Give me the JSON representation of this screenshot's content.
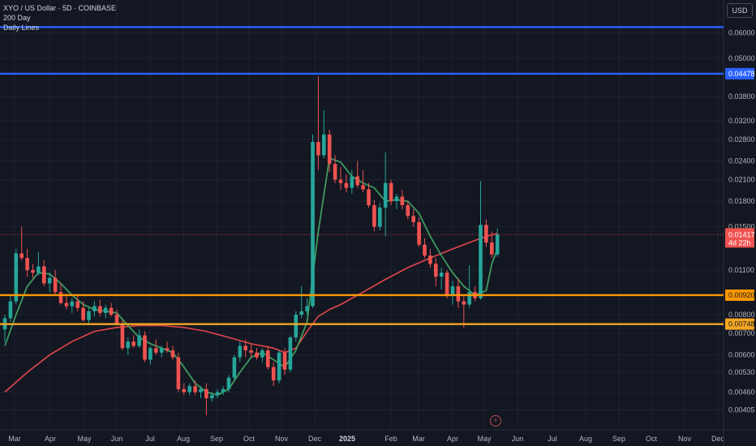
{
  "header": {
    "symbol_line": "XYO / US Dollar · 5D · COINBASE",
    "study_1": "200 Day",
    "study_2": "Daily Lines"
  },
  "currency_button": "USD",
  "flash_icon": "lightning-icon",
  "colors": {
    "background": "#131722",
    "up": "#26a69a",
    "down": "#ef5350",
    "ma_short": "#3e9a5e",
    "ma_long": "#e2474b",
    "level_blue": "#2962ff",
    "level_orange": "#ff9800",
    "level_gold": "#f5a623"
  },
  "chart_data": {
    "type": "candlestick",
    "y_scale": "log",
    "x_ticks": [
      "Mar",
      "Apr",
      "May",
      "Jun",
      "Jul",
      "Aug",
      "Sep",
      "Oct",
      "Nov",
      "Dec",
      "2025",
      "Feb",
      "Mar",
      "Apr",
      "May",
      "Jun",
      "Jul",
      "Aug",
      "Sep",
      "Oct",
      "Nov",
      "Dec"
    ],
    "y_ticks": [
      "0.06000",
      "0.05000",
      "0.03800",
      "0.03200",
      "0.02800",
      "0.02400",
      "0.02100",
      "0.01800",
      "0.01500",
      "0.01100",
      "0.00800",
      "0.00700",
      "0.00600",
      "0.00530",
      "0.00460",
      "0.00405"
    ],
    "ylim": [
      0.0039,
      0.066
    ],
    "horizontal_levels": [
      {
        "value": 0.0625,
        "color": "#2962ff",
        "label": ""
      },
      {
        "value": 0.04478,
        "color": "#2962ff",
        "label": "0.04478"
      },
      {
        "value": 0.0092,
        "color": "#ff9800",
        "label": "0.00920"
      },
      {
        "value": 0.00748,
        "color": "#f5a623",
        "label": "0.00748"
      }
    ],
    "last_price": {
      "value": 0.01417,
      "label": "0.01417",
      "countdown": "4d 22h"
    },
    "candles": [
      {
        "o": 0.0072,
        "h": 0.008,
        "l": 0.0066,
        "c": 0.0078
      },
      {
        "o": 0.0078,
        "h": 0.0092,
        "l": 0.0076,
        "c": 0.0088
      },
      {
        "o": 0.0088,
        "h": 0.0128,
        "l": 0.0086,
        "c": 0.0124
      },
      {
        "o": 0.0124,
        "h": 0.015,
        "l": 0.0118,
        "c": 0.012
      },
      {
        "o": 0.012,
        "h": 0.0128,
        "l": 0.0105,
        "c": 0.011
      },
      {
        "o": 0.011,
        "h": 0.0115,
        "l": 0.0104,
        "c": 0.0108
      },
      {
        "o": 0.0108,
        "h": 0.0125,
        "l": 0.0106,
        "c": 0.0113
      },
      {
        "o": 0.0113,
        "h": 0.0118,
        "l": 0.0098,
        "c": 0.01
      },
      {
        "o": 0.01,
        "h": 0.0108,
        "l": 0.0094,
        "c": 0.0104
      },
      {
        "o": 0.0104,
        "h": 0.011,
        "l": 0.0092,
        "c": 0.0094
      },
      {
        "o": 0.0094,
        "h": 0.01,
        "l": 0.0086,
        "c": 0.0087
      },
      {
        "o": 0.0087,
        "h": 0.0093,
        "l": 0.0083,
        "c": 0.0085
      },
      {
        "o": 0.0085,
        "h": 0.009,
        "l": 0.0081,
        "c": 0.0088
      },
      {
        "o": 0.0088,
        "h": 0.0092,
        "l": 0.0082,
        "c": 0.0084
      },
      {
        "o": 0.0084,
        "h": 0.0088,
        "l": 0.0076,
        "c": 0.0077
      },
      {
        "o": 0.0077,
        "h": 0.0084,
        "l": 0.0075,
        "c": 0.0082
      },
      {
        "o": 0.0082,
        "h": 0.0088,
        "l": 0.0079,
        "c": 0.0085
      },
      {
        "o": 0.0085,
        "h": 0.0089,
        "l": 0.0079,
        "c": 0.0081
      },
      {
        "o": 0.0081,
        "h": 0.0086,
        "l": 0.0078,
        "c": 0.0084
      },
      {
        "o": 0.0084,
        "h": 0.0087,
        "l": 0.0079,
        "c": 0.008
      },
      {
        "o": 0.008,
        "h": 0.0083,
        "l": 0.0074,
        "c": 0.0075
      },
      {
        "o": 0.0075,
        "h": 0.0077,
        "l": 0.0062,
        "c": 0.0063
      },
      {
        "o": 0.0063,
        "h": 0.0068,
        "l": 0.006,
        "c": 0.0066
      },
      {
        "o": 0.0066,
        "h": 0.0069,
        "l": 0.0063,
        "c": 0.0064
      },
      {
        "o": 0.0064,
        "h": 0.0072,
        "l": 0.0063,
        "c": 0.0069
      },
      {
        "o": 0.0069,
        "h": 0.0071,
        "l": 0.0057,
        "c": 0.0058
      },
      {
        "o": 0.0058,
        "h": 0.0064,
        "l": 0.0056,
        "c": 0.0063
      },
      {
        "o": 0.0063,
        "h": 0.0067,
        "l": 0.006,
        "c": 0.0061
      },
      {
        "o": 0.0061,
        "h": 0.0064,
        "l": 0.0059,
        "c": 0.0063
      },
      {
        "o": 0.0063,
        "h": 0.0066,
        "l": 0.0061,
        "c": 0.0062
      },
      {
        "o": 0.0062,
        "h": 0.0064,
        "l": 0.0058,
        "c": 0.0059
      },
      {
        "o": 0.0059,
        "h": 0.0061,
        "l": 0.0046,
        "c": 0.0047
      },
      {
        "o": 0.0047,
        "h": 0.0049,
        "l": 0.0045,
        "c": 0.0046
      },
      {
        "o": 0.0046,
        "h": 0.0049,
        "l": 0.0045,
        "c": 0.0048
      },
      {
        "o": 0.0048,
        "h": 0.005,
        "l": 0.0045,
        "c": 0.0046
      },
      {
        "o": 0.0046,
        "h": 0.0048,
        "l": 0.0044,
        "c": 0.0047
      },
      {
        "o": 0.0047,
        "h": 0.0049,
        "l": 0.0039,
        "c": 0.0044
      },
      {
        "o": 0.0044,
        "h": 0.0046,
        "l": 0.0043,
        "c": 0.0045
      },
      {
        "o": 0.0045,
        "h": 0.0047,
        "l": 0.0044,
        "c": 0.0046
      },
      {
        "o": 0.0046,
        "h": 0.0048,
        "l": 0.0045,
        "c": 0.0047
      },
      {
        "o": 0.0047,
        "h": 0.0052,
        "l": 0.0046,
        "c": 0.0051
      },
      {
        "o": 0.0051,
        "h": 0.006,
        "l": 0.005,
        "c": 0.0059
      },
      {
        "o": 0.0059,
        "h": 0.0066,
        "l": 0.0057,
        "c": 0.0064
      },
      {
        "o": 0.0064,
        "h": 0.0067,
        "l": 0.0059,
        "c": 0.0062
      },
      {
        "o": 0.0062,
        "h": 0.0065,
        "l": 0.0059,
        "c": 0.0061
      },
      {
        "o": 0.0061,
        "h": 0.0063,
        "l": 0.0058,
        "c": 0.0059
      },
      {
        "o": 0.0059,
        "h": 0.0063,
        "l": 0.0057,
        "c": 0.0062
      },
      {
        "o": 0.0062,
        "h": 0.0064,
        "l": 0.0054,
        "c": 0.0055
      },
      {
        "o": 0.0055,
        "h": 0.0057,
        "l": 0.0048,
        "c": 0.005
      },
      {
        "o": 0.005,
        "h": 0.0062,
        "l": 0.0049,
        "c": 0.0061
      },
      {
        "o": 0.0061,
        "h": 0.0063,
        "l": 0.0052,
        "c": 0.0054
      },
      {
        "o": 0.0054,
        "h": 0.0069,
        "l": 0.0053,
        "c": 0.0068
      },
      {
        "o": 0.0068,
        "h": 0.0082,
        "l": 0.0066,
        "c": 0.008
      },
      {
        "o": 0.008,
        "h": 0.0098,
        "l": 0.0078,
        "c": 0.0082
      },
      {
        "o": 0.0082,
        "h": 0.009,
        "l": 0.008,
        "c": 0.0085
      },
      {
        "o": 0.0085,
        "h": 0.029,
        "l": 0.0084,
        "c": 0.0275
      },
      {
        "o": 0.0275,
        "h": 0.044,
        "l": 0.0225,
        "c": 0.025
      },
      {
        "o": 0.025,
        "h": 0.0345,
        "l": 0.0245,
        "c": 0.029
      },
      {
        "o": 0.029,
        "h": 0.03,
        "l": 0.0222,
        "c": 0.0235
      },
      {
        "o": 0.0235,
        "h": 0.025,
        "l": 0.0205,
        "c": 0.021
      },
      {
        "o": 0.021,
        "h": 0.023,
        "l": 0.0195,
        "c": 0.0205
      },
      {
        "o": 0.0205,
        "h": 0.0218,
        "l": 0.0192,
        "c": 0.0198
      },
      {
        "o": 0.0198,
        "h": 0.0225,
        "l": 0.019,
        "c": 0.0215
      },
      {
        "o": 0.0215,
        "h": 0.024,
        "l": 0.0198,
        "c": 0.0202
      },
      {
        "o": 0.0202,
        "h": 0.0225,
        "l": 0.0192,
        "c": 0.0196
      },
      {
        "o": 0.0196,
        "h": 0.0205,
        "l": 0.0172,
        "c": 0.0175
      },
      {
        "o": 0.0175,
        "h": 0.0182,
        "l": 0.0145,
        "c": 0.015
      },
      {
        "o": 0.015,
        "h": 0.0178,
        "l": 0.0146,
        "c": 0.0172
      },
      {
        "o": 0.0172,
        "h": 0.0255,
        "l": 0.014,
        "c": 0.0205
      },
      {
        "o": 0.0205,
        "h": 0.021,
        "l": 0.0175,
        "c": 0.018
      },
      {
        "o": 0.018,
        "h": 0.019,
        "l": 0.017,
        "c": 0.0186
      },
      {
        "o": 0.0186,
        "h": 0.0195,
        "l": 0.017,
        "c": 0.0175
      },
      {
        "o": 0.0175,
        "h": 0.018,
        "l": 0.0158,
        "c": 0.0162
      },
      {
        "o": 0.0162,
        "h": 0.017,
        "l": 0.015,
        "c": 0.0155
      },
      {
        "o": 0.0155,
        "h": 0.016,
        "l": 0.013,
        "c": 0.0132
      },
      {
        "o": 0.0132,
        "h": 0.0138,
        "l": 0.012,
        "c": 0.0122
      },
      {
        "o": 0.0122,
        "h": 0.0128,
        "l": 0.0112,
        "c": 0.0115
      },
      {
        "o": 0.0115,
        "h": 0.012,
        "l": 0.0098,
        "c": 0.0105
      },
      {
        "o": 0.0105,
        "h": 0.0112,
        "l": 0.0096,
        "c": 0.0108
      },
      {
        "o": 0.0108,
        "h": 0.011,
        "l": 0.009,
        "c": 0.0092
      },
      {
        "o": 0.0092,
        "h": 0.0102,
        "l": 0.0086,
        "c": 0.0098
      },
      {
        "o": 0.0098,
        "h": 0.0104,
        "l": 0.0084,
        "c": 0.0088
      },
      {
        "o": 0.0088,
        "h": 0.0092,
        "l": 0.0073,
        "c": 0.0086
      },
      {
        "o": 0.0086,
        "h": 0.0114,
        "l": 0.0084,
        "c": 0.0094
      },
      {
        "o": 0.0094,
        "h": 0.0098,
        "l": 0.0088,
        "c": 0.009
      },
      {
        "o": 0.009,
        "h": 0.0208,
        "l": 0.0089,
        "c": 0.0152
      },
      {
        "o": 0.0152,
        "h": 0.0158,
        "l": 0.013,
        "c": 0.0134
      },
      {
        "o": 0.0134,
        "h": 0.0145,
        "l": 0.012,
        "c": 0.0123
      },
      {
        "o": 0.0123,
        "h": 0.0148,
        "l": 0.0121,
        "c": 0.0142
      }
    ],
    "sma_short": [
      {
        "i": 0,
        "v": 0.0064
      },
      {
        "i": 2,
        "v": 0.008
      },
      {
        "i": 4,
        "v": 0.0098
      },
      {
        "i": 6,
        "v": 0.0108
      },
      {
        "i": 8,
        "v": 0.0107
      },
      {
        "i": 10,
        "v": 0.01
      },
      {
        "i": 12,
        "v": 0.0092
      },
      {
        "i": 14,
        "v": 0.0086
      },
      {
        "i": 16,
        "v": 0.0083
      },
      {
        "i": 18,
        "v": 0.0082
      },
      {
        "i": 20,
        "v": 0.0081
      },
      {
        "i": 22,
        "v": 0.0074
      },
      {
        "i": 24,
        "v": 0.0068
      },
      {
        "i": 26,
        "v": 0.0065
      },
      {
        "i": 28,
        "v": 0.0063
      },
      {
        "i": 30,
        "v": 0.0061
      },
      {
        "i": 32,
        "v": 0.0055
      },
      {
        "i": 34,
        "v": 0.0049
      },
      {
        "i": 36,
        "v": 0.0046
      },
      {
        "i": 38,
        "v": 0.0045
      },
      {
        "i": 40,
        "v": 0.0047
      },
      {
        "i": 42,
        "v": 0.0053
      },
      {
        "i": 44,
        "v": 0.0059
      },
      {
        "i": 46,
        "v": 0.0061
      },
      {
        "i": 48,
        "v": 0.0058
      },
      {
        "i": 50,
        "v": 0.0055
      },
      {
        "i": 52,
        "v": 0.0062
      },
      {
        "i": 54,
        "v": 0.0076
      },
      {
        "i": 56,
        "v": 0.0145
      },
      {
        "i": 58,
        "v": 0.0245
      },
      {
        "i": 60,
        "v": 0.0238
      },
      {
        "i": 62,
        "v": 0.0215
      },
      {
        "i": 64,
        "v": 0.0205
      },
      {
        "i": 66,
        "v": 0.0198
      },
      {
        "i": 68,
        "v": 0.018
      },
      {
        "i": 70,
        "v": 0.0182
      },
      {
        "i": 72,
        "v": 0.018
      },
      {
        "i": 74,
        "v": 0.0165
      },
      {
        "i": 76,
        "v": 0.014
      },
      {
        "i": 78,
        "v": 0.0122
      },
      {
        "i": 80,
        "v": 0.0108
      },
      {
        "i": 82,
        "v": 0.0098
      },
      {
        "i": 84,
        "v": 0.0092
      },
      {
        "i": 86,
        "v": 0.0095
      },
      {
        "i": 87,
        "v": 0.0115
      },
      {
        "i": 88,
        "v": 0.0128
      }
    ],
    "sma_long": [
      {
        "i": 0,
        "v": 0.0046
      },
      {
        "i": 4,
        "v": 0.0053
      },
      {
        "i": 8,
        "v": 0.006
      },
      {
        "i": 12,
        "v": 0.0066
      },
      {
        "i": 16,
        "v": 0.0071
      },
      {
        "i": 20,
        "v": 0.0073
      },
      {
        "i": 24,
        "v": 0.0074
      },
      {
        "i": 28,
        "v": 0.0074
      },
      {
        "i": 32,
        "v": 0.0073
      },
      {
        "i": 36,
        "v": 0.0071
      },
      {
        "i": 40,
        "v": 0.0068
      },
      {
        "i": 44,
        "v": 0.0065
      },
      {
        "i": 48,
        "v": 0.0063
      },
      {
        "i": 50,
        "v": 0.0061
      },
      {
        "i": 52,
        "v": 0.0063
      },
      {
        "i": 54,
        "v": 0.0071
      },
      {
        "i": 56,
        "v": 0.0079
      },
      {
        "i": 58,
        "v": 0.0083
      },
      {
        "i": 60,
        "v": 0.0086
      },
      {
        "i": 64,
        "v": 0.0094
      },
      {
        "i": 68,
        "v": 0.0103
      },
      {
        "i": 72,
        "v": 0.0112
      },
      {
        "i": 76,
        "v": 0.012
      },
      {
        "i": 80,
        "v": 0.0128
      },
      {
        "i": 84,
        "v": 0.0136
      },
      {
        "i": 86,
        "v": 0.014
      },
      {
        "i": 88,
        "v": 0.0143
      }
    ]
  }
}
